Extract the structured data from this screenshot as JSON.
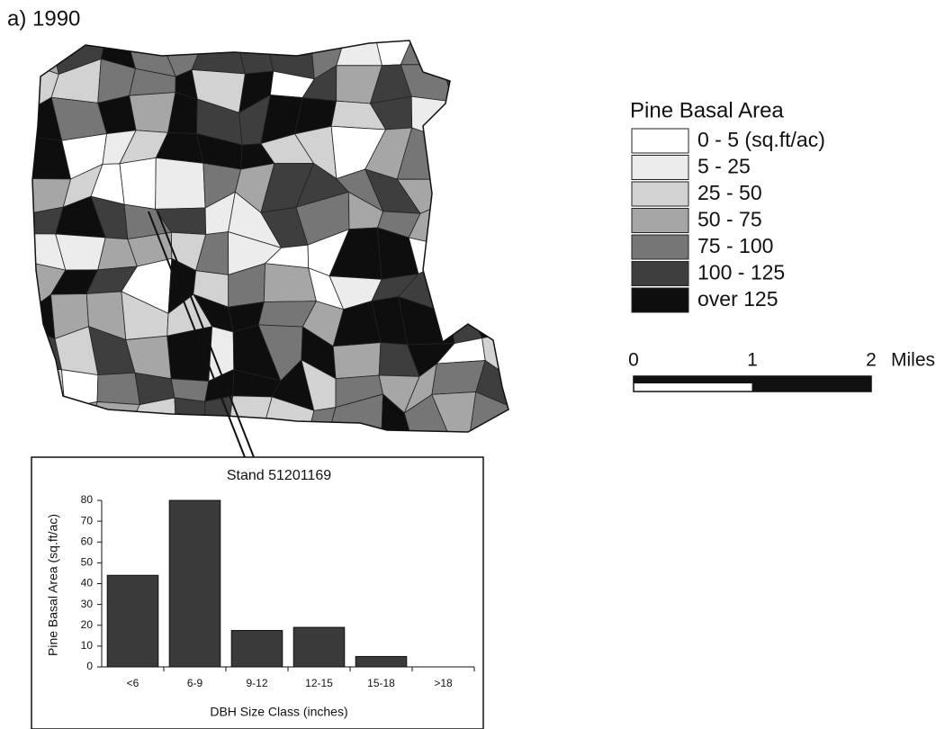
{
  "title": "a) 1990",
  "legend": {
    "title": "Pine Basal Area",
    "items": [
      {
        "label": "0 - 5 (sq.ft/ac)",
        "color": "#ffffff"
      },
      {
        "label": "5 - 25",
        "color": "#ececec"
      },
      {
        "label": "25 - 50",
        "color": "#d2d2d2"
      },
      {
        "label": "50 - 75",
        "color": "#a6a6a6"
      },
      {
        "label": "75 - 100",
        "color": "#767676"
      },
      {
        "label": "100 - 125",
        "color": "#3e3e3e"
      },
      {
        "label": "over 125",
        "color": "#0e0e0e"
      }
    ]
  },
  "scale_bar": {
    "xlim": [
      0,
      2
    ],
    "ticks": [
      0,
      1,
      2
    ],
    "unit": "Miles"
  },
  "chart_data": {
    "type": "bar",
    "title": "Stand 51201169",
    "x_label": "DBH Size Class (inches)",
    "y_label": "Pine Basal Area (sq.ft/ac)",
    "categories": [
      "<6",
      "6-9",
      "9-12",
      "12-15",
      "15-18",
      ">18"
    ],
    "values": [
      44,
      80,
      17.5,
      19,
      5,
      0
    ],
    "color": "#3a3a3a",
    "ylim": [
      0,
      80
    ],
    "yticks": [
      0,
      10,
      20,
      30,
      40,
      50,
      60,
      70,
      80
    ]
  }
}
